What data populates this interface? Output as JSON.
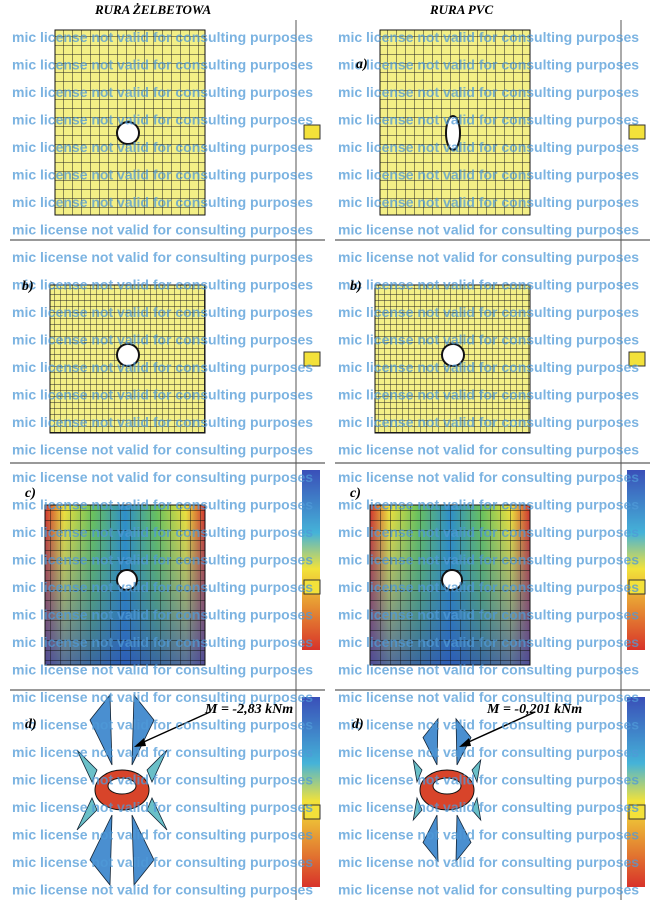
{
  "titles": {
    "left": "RURA ŻELBETOWA",
    "right": "RURA PVC"
  },
  "watermark": "mic license not valid for consulting purposes",
  "panel_labels": {
    "left": [
      "b)",
      "c)",
      "d)"
    ],
    "right": [
      "a)",
      "b)",
      "c)",
      "d)"
    ]
  },
  "annotations": {
    "left": "M = -2,83 kNm",
    "right": "M = -0,201 kNm"
  }
}
